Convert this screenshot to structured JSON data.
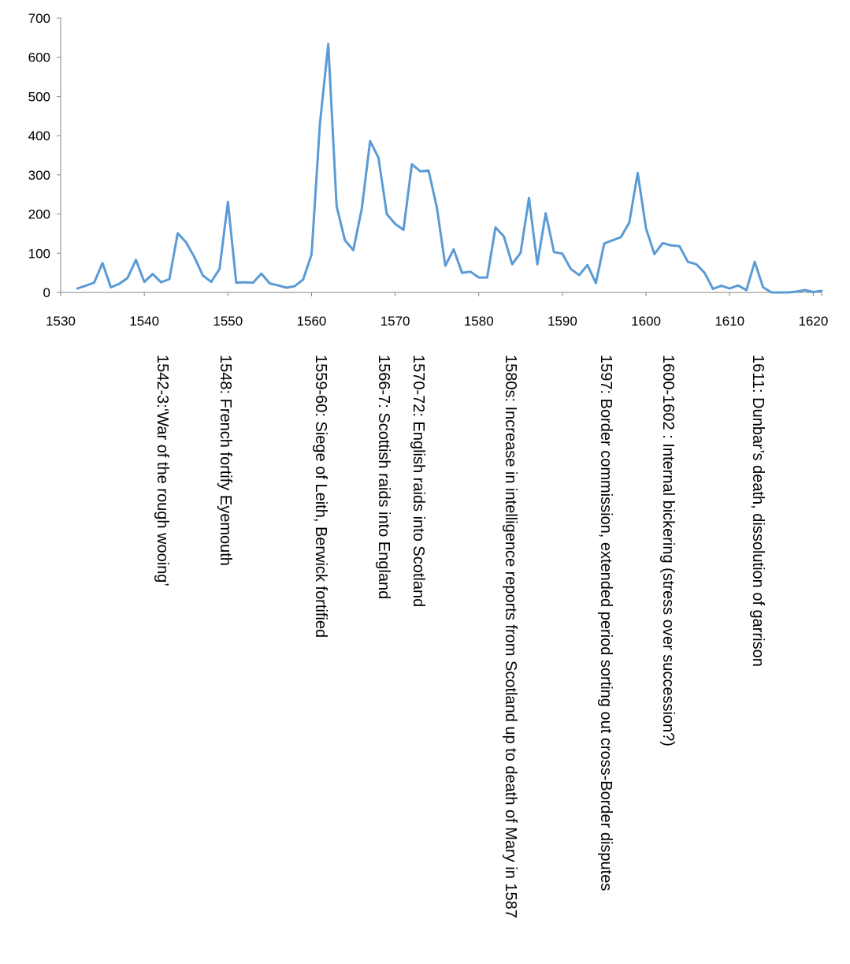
{
  "chart_data": {
    "type": "line",
    "title": "",
    "xlabel": "",
    "ylabel": "",
    "xlim": [
      1530,
      1621
    ],
    "ylim": [
      0,
      700
    ],
    "x_ticks": [
      1530,
      1540,
      1550,
      1560,
      1570,
      1580,
      1590,
      1600,
      1610,
      1620
    ],
    "y_ticks": [
      0,
      100,
      200,
      300,
      400,
      500,
      600,
      700
    ],
    "grid": false,
    "legend": "none",
    "line_color": "#5B9BD5",
    "series": [
      {
        "x": [
          1532,
          1533,
          1534,
          1535,
          1536,
          1537,
          1538,
          1539,
          1540,
          1541,
          1542,
          1543,
          1544,
          1545,
          1546,
          1547,
          1548,
          1549,
          1550,
          1551,
          1552,
          1553,
          1554,
          1555,
          1556,
          1557,
          1558,
          1559,
          1560,
          1561,
          1562,
          1563,
          1564,
          1565,
          1566,
          1567,
          1568,
          1569,
          1570,
          1571,
          1572,
          1573,
          1574,
          1575,
          1576,
          1577,
          1578,
          1579,
          1580,
          1581,
          1582,
          1583,
          1584,
          1585,
          1586,
          1587,
          1588,
          1589,
          1590,
          1591,
          1592,
          1593,
          1594,
          1595,
          1596,
          1597,
          1598,
          1599,
          1600,
          1601,
          1602,
          1603,
          1604,
          1605,
          1606,
          1607,
          1608,
          1609,
          1610,
          1611,
          1612,
          1613,
          1614,
          1615,
          1616,
          1617,
          1618,
          1619,
          1620,
          1621
        ],
        "values": [
          10,
          17,
          25,
          75,
          13,
          22,
          37,
          83,
          27,
          47,
          26,
          34,
          151,
          128,
          90,
          43,
          27,
          60,
          231,
          25,
          26,
          25,
          48,
          23,
          18,
          12,
          16,
          33,
          97,
          430,
          634,
          220,
          133,
          108,
          213,
          386,
          344,
          200,
          175,
          160,
          327,
          309,
          311,
          215,
          68,
          110,
          50,
          53,
          38,
          38,
          166,
          143,
          72,
          101,
          241,
          72,
          202,
          103,
          99,
          60,
          44,
          70,
          24,
          125,
          133,
          141,
          178,
          305,
          163,
          98,
          126,
          120,
          118,
          78,
          72,
          50,
          9,
          17,
          10,
          18,
          6,
          78,
          13,
          0,
          0,
          0,
          2,
          6,
          1,
          4
        ]
      }
    ]
  },
  "annotations": [
    {
      "id": "a1542",
      "text": "1542-3:‘War of the rough wooing’"
    },
    {
      "id": "a1548",
      "text": "1548: French fortify Eyemouth"
    },
    {
      "id": "a1559",
      "text": "1559-60: Siege of Leith, Berwick  fortified"
    },
    {
      "id": "a1566",
      "text": "1566-7: Scottish raids into England"
    },
    {
      "id": "a1570",
      "text": "1570-72: English raids into Scotland"
    },
    {
      "id": "a1580",
      "text": "1580s: Increase in intelligence reports from Scotland up to death of Mary in 1587"
    },
    {
      "id": "a1597",
      "text": "1597: Border commission, extended period sorting out cross-Border disputes"
    },
    {
      "id": "a1600",
      "text": "1600-1602 : Internal bickering (stress over succession?)"
    },
    {
      "id": "a1611",
      "text": "1611: Dunbar’s death, dissolution of garrison"
    }
  ]
}
